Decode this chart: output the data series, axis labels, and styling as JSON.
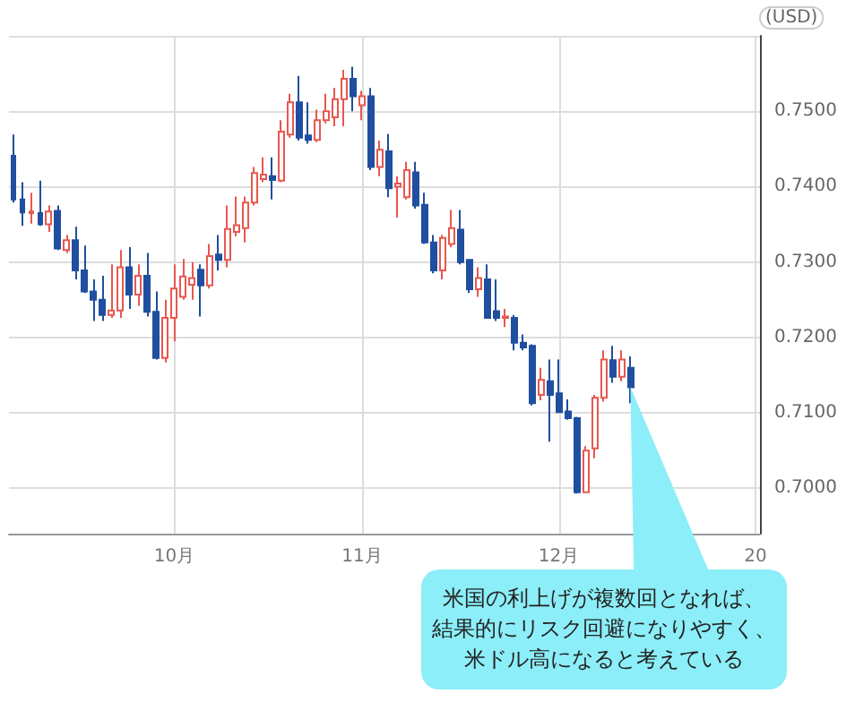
{
  "chart_data": {
    "type": "candlestick",
    "ylabel": "(USD)",
    "categories": [
      null,
      null,
      null,
      null,
      null,
      null,
      null,
      null,
      null,
      null,
      null,
      null,
      null,
      null,
      null,
      null,
      null,
      null,
      "10月",
      null,
      null,
      null,
      null,
      null,
      null,
      null,
      null,
      null,
      null,
      null,
      null,
      null,
      null,
      null,
      null,
      null,
      null,
      null,
      null,
      "11月",
      null,
      null,
      null,
      null,
      null,
      null,
      null,
      null,
      null,
      null,
      null,
      null,
      null,
      null,
      null,
      null,
      null,
      null,
      null,
      null,
      null,
      "12月",
      null,
      null,
      null,
      null,
      null,
      null,
      null,
      null,
      null,
      null,
      null,
      null,
      null,
      null,
      null,
      null,
      null,
      null,
      null,
      null,
      null,
      "20"
    ],
    "ohlc": [
      [
        0.7441,
        0.7469,
        0.7379,
        0.7383
      ],
      [
        0.7383,
        0.7406,
        0.7348,
        0.7366
      ],
      [
        0.7365,
        0.7392,
        0.7351,
        0.7367
      ],
      [
        0.7365,
        0.7408,
        0.7348,
        0.735
      ],
      [
        0.735,
        0.7375,
        0.734,
        0.7367
      ],
      [
        0.7368,
        0.7375,
        0.7316,
        0.7318
      ],
      [
        0.7316,
        0.7336,
        0.7312,
        0.7329
      ],
      [
        0.7329,
        0.7347,
        0.7277,
        0.7289
      ],
      [
        0.7289,
        0.7322,
        0.7259,
        0.7261
      ],
      [
        0.7261,
        0.7277,
        0.7222,
        0.725
      ],
      [
        0.725,
        0.7282,
        0.7222,
        0.723
      ],
      [
        0.723,
        0.7297,
        0.7226,
        0.7236
      ],
      [
        0.7236,
        0.7316,
        0.7226,
        0.7293
      ],
      [
        0.7293,
        0.732,
        0.7238,
        0.7257
      ],
      [
        0.7257,
        0.7297,
        0.7242,
        0.7282
      ],
      [
        0.7282,
        0.7312,
        0.7228,
        0.7234
      ],
      [
        0.7234,
        0.7261,
        0.7171,
        0.7173
      ],
      [
        0.7173,
        0.725,
        0.7167,
        0.7226
      ],
      [
        0.7226,
        0.7297,
        0.7195,
        0.7265
      ],
      [
        0.7254,
        0.7304,
        0.725,
        0.7281
      ],
      [
        0.727,
        0.73,
        0.725,
        0.7279
      ],
      [
        0.729,
        0.7297,
        0.7228,
        0.7269
      ],
      [
        0.7269,
        0.7324,
        0.7265,
        0.7308
      ],
      [
        0.731,
        0.7336,
        0.7289,
        0.7303
      ],
      [
        0.7303,
        0.7375,
        0.7293,
        0.7344
      ],
      [
        0.734,
        0.7387,
        0.7334,
        0.7349
      ],
      [
        0.7345,
        0.7387,
        0.7326,
        0.7379
      ],
      [
        0.7379,
        0.7426,
        0.7375,
        0.7418
      ],
      [
        0.741,
        0.7439,
        0.7406,
        0.7416
      ],
      [
        0.7414,
        0.7439,
        0.7383,
        0.7409
      ],
      [
        0.7408,
        0.7488,
        0.7406,
        0.7473
      ],
      [
        0.7469,
        0.7523,
        0.7465,
        0.7512
      ],
      [
        0.7512,
        0.7547,
        0.7461,
        0.7465
      ],
      [
        0.7468,
        0.7512,
        0.7457,
        0.7462
      ],
      [
        0.7462,
        0.7502,
        0.7459,
        0.7488
      ],
      [
        0.7488,
        0.7523,
        0.7484,
        0.75
      ],
      [
        0.7492,
        0.7531,
        0.748,
        0.7516
      ],
      [
        0.7516,
        0.7555,
        0.748,
        0.7543
      ],
      [
        0.7543,
        0.7559,
        0.75,
        0.752
      ],
      [
        0.7508,
        0.7527,
        0.7488,
        0.752
      ],
      [
        0.752,
        0.7531,
        0.7422,
        0.7426
      ],
      [
        0.7426,
        0.7461,
        0.7414,
        0.7449
      ],
      [
        0.7447,
        0.747,
        0.7386,
        0.7398
      ],
      [
        0.74,
        0.7414,
        0.7359,
        0.7404
      ],
      [
        0.7386,
        0.7433,
        0.7383,
        0.7422
      ],
      [
        0.7419,
        0.7433,
        0.7371,
        0.7375
      ],
      [
        0.7376,
        0.7392,
        0.7324,
        0.7326
      ],
      [
        0.7326,
        0.7336,
        0.7285,
        0.7289
      ],
      [
        0.7289,
        0.7336,
        0.7277,
        0.7332
      ],
      [
        0.7324,
        0.7369,
        0.732,
        0.7345
      ],
      [
        0.7343,
        0.7369,
        0.7297,
        0.73
      ],
      [
        0.7303,
        0.7304,
        0.7259,
        0.7264
      ],
      [
        0.7264,
        0.7293,
        0.7254,
        0.7279
      ],
      [
        0.7277,
        0.7297,
        0.7225,
        0.7226
      ],
      [
        0.7235,
        0.7277,
        0.7222,
        0.7226
      ],
      [
        0.7226,
        0.7238,
        0.7214,
        0.7228
      ],
      [
        0.7226,
        0.723,
        0.7183,
        0.7193
      ],
      [
        0.7193,
        0.7204,
        0.7183,
        0.7187
      ],
      [
        0.7189,
        0.7191,
        0.711,
        0.7113
      ],
      [
        0.7124,
        0.716,
        0.7117,
        0.7144
      ],
      [
        0.7142,
        0.7171,
        0.7062,
        0.7124
      ],
      [
        0.7126,
        0.7171,
        0.71,
        0.7101
      ],
      [
        0.7102,
        0.7118,
        0.7091,
        0.7093
      ],
      [
        0.7093,
        0.7095,
        0.6993,
        0.6995
      ],
      [
        0.6995,
        0.7056,
        0.6995,
        0.705
      ],
      [
        0.7053,
        0.7124,
        0.704,
        0.712
      ],
      [
        0.712,
        0.7183,
        0.7115,
        0.7171
      ],
      [
        0.717,
        0.7189,
        0.714,
        0.7148
      ],
      [
        0.7148,
        0.7183,
        0.7142,
        0.7171
      ],
      [
        0.716,
        0.7175,
        0.7113,
        0.7134
      ],
      null,
      null,
      null,
      null,
      null,
      null,
      null,
      null,
      null,
      null,
      null,
      null,
      null,
      null
    ],
    "colors": [
      "#1f4f9e",
      "#1f4f9e",
      "#e8574e",
      "#1f4f9e",
      "#e8574e",
      "#1f4f9e",
      "#e8574e",
      "#1f4f9e",
      "#1f4f9e",
      "#1f4f9e",
      "#1f4f9e",
      "#e8574e",
      "#e8574e",
      "#1f4f9e",
      "#e8574e",
      "#1f4f9e",
      "#1f4f9e",
      "#e8574e",
      "#e8574e",
      "#e8574e",
      "#e8574e",
      "#1f4f9e",
      "#e8574e",
      "#1f4f9e",
      "#e8574e",
      "#e8574e",
      "#e8574e",
      "#e8574e",
      "#e8574e",
      "#1f4f9e",
      "#e8574e",
      "#e8574e",
      "#1f4f9e",
      "#1f4f9e",
      "#e8574e",
      "#e8574e",
      "#e8574e",
      "#e8574e",
      "#1f4f9e",
      "#e8574e",
      "#1f4f9e",
      "#e8574e",
      "#1f4f9e",
      "#e8574e",
      "#e8574e",
      "#1f4f9e",
      "#1f4f9e",
      "#1f4f9e",
      "#e8574e",
      "#e8574e",
      "#1f4f9e",
      "#1f4f9e",
      "#e8574e",
      "#1f4f9e",
      "#1f4f9e",
      "#e8574e",
      "#1f4f9e",
      "#1f4f9e",
      "#1f4f9e",
      "#e8574e",
      "#1f4f9e",
      "#1f4f9e",
      "#1f4f9e",
      "#1f4f9e",
      "#e8574e",
      "#e8574e",
      "#e8574e",
      "#1f4f9e",
      "#e8574e",
      "#1f4f9e",
      null,
      null,
      null,
      null,
      null,
      null,
      null,
      null,
      null,
      null,
      null,
      null,
      null,
      null
    ],
    "ylim": [
      0.694,
      0.76
    ],
    "yticks": [
      {
        "value": 0.7,
        "label": "0.7000"
      },
      {
        "value": 0.71,
        "label": "0.7100"
      },
      {
        "value": 0.72,
        "label": "0.7200"
      },
      {
        "value": 0.73,
        "label": "0.7300"
      },
      {
        "value": 0.74,
        "label": "0.7400"
      },
      {
        "value": 0.75,
        "label": "0.7500"
      },
      {
        "value": 0.76,
        "label": null
      }
    ],
    "grid": true,
    "annotations": [
      "米国の利上げが複数回となれば、結果的にリスク回避になりやすく、米ドル高になると考えている"
    ]
  }
}
